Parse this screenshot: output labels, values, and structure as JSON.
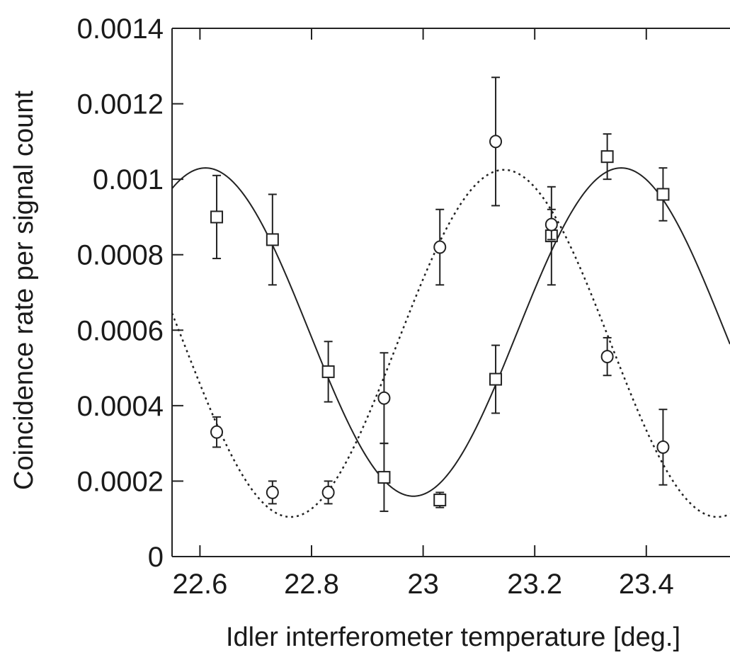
{
  "chart_data": {
    "type": "scatter",
    "title": "",
    "xlabel": "Idler interferometer temperature [deg.]",
    "ylabel": "Coincidence rate per signal count",
    "xlim": [
      22.55,
      23.55
    ],
    "ylim": [
      0,
      0.0014
    ],
    "x_ticks": [
      22.6,
      22.8,
      23.0,
      23.2,
      23.4
    ],
    "x_tick_labels": [
      "22.6",
      "22.8",
      "23",
      "23.2",
      "23.4"
    ],
    "y_ticks": [
      0,
      0.0002,
      0.0004,
      0.0006,
      0.0008,
      0.001,
      0.0012,
      0.0014
    ],
    "y_tick_labels": [
      "0",
      "0.0002",
      "0.0004",
      "0.0006",
      "0.0008",
      "0.001",
      "0.0012",
      "0.0014"
    ],
    "grid": false,
    "series": [
      {
        "marker": "square",
        "x": [
          22.63,
          22.73,
          22.83,
          22.93,
          23.03,
          23.13,
          23.23,
          23.33,
          23.43
        ],
        "y": [
          0.0009,
          0.00084,
          0.00049,
          0.00021,
          0.00015,
          0.00047,
          0.00085,
          0.00106,
          0.00096
        ],
        "err": [
          0.00011,
          0.00012,
          8e-05,
          9e-05,
          2e-05,
          9e-05,
          0.00013,
          6e-05,
          7e-05
        ]
      },
      {
        "marker": "circle",
        "x": [
          22.63,
          22.73,
          22.83,
          22.93,
          23.03,
          23.13,
          23.23,
          23.33,
          23.43
        ],
        "y": [
          0.00033,
          0.00017,
          0.00017,
          0.00042,
          0.00082,
          0.0011,
          0.00088,
          0.00053,
          0.00029
        ],
        "err": [
          4e-05,
          3e-05,
          3e-05,
          0.00012,
          0.0001,
          0.00017,
          4e-05,
          5e-05,
          0.0001
        ]
      }
    ],
    "fits": [
      {
        "style": "solid",
        "offset": 0.000595,
        "amplitude": 0.000435,
        "period": 0.745,
        "peak_x": 22.61
      },
      {
        "style": "dotted",
        "offset": 0.000565,
        "amplitude": 0.00046,
        "period": 0.765,
        "peak_x": 23.145
      }
    ]
  }
}
